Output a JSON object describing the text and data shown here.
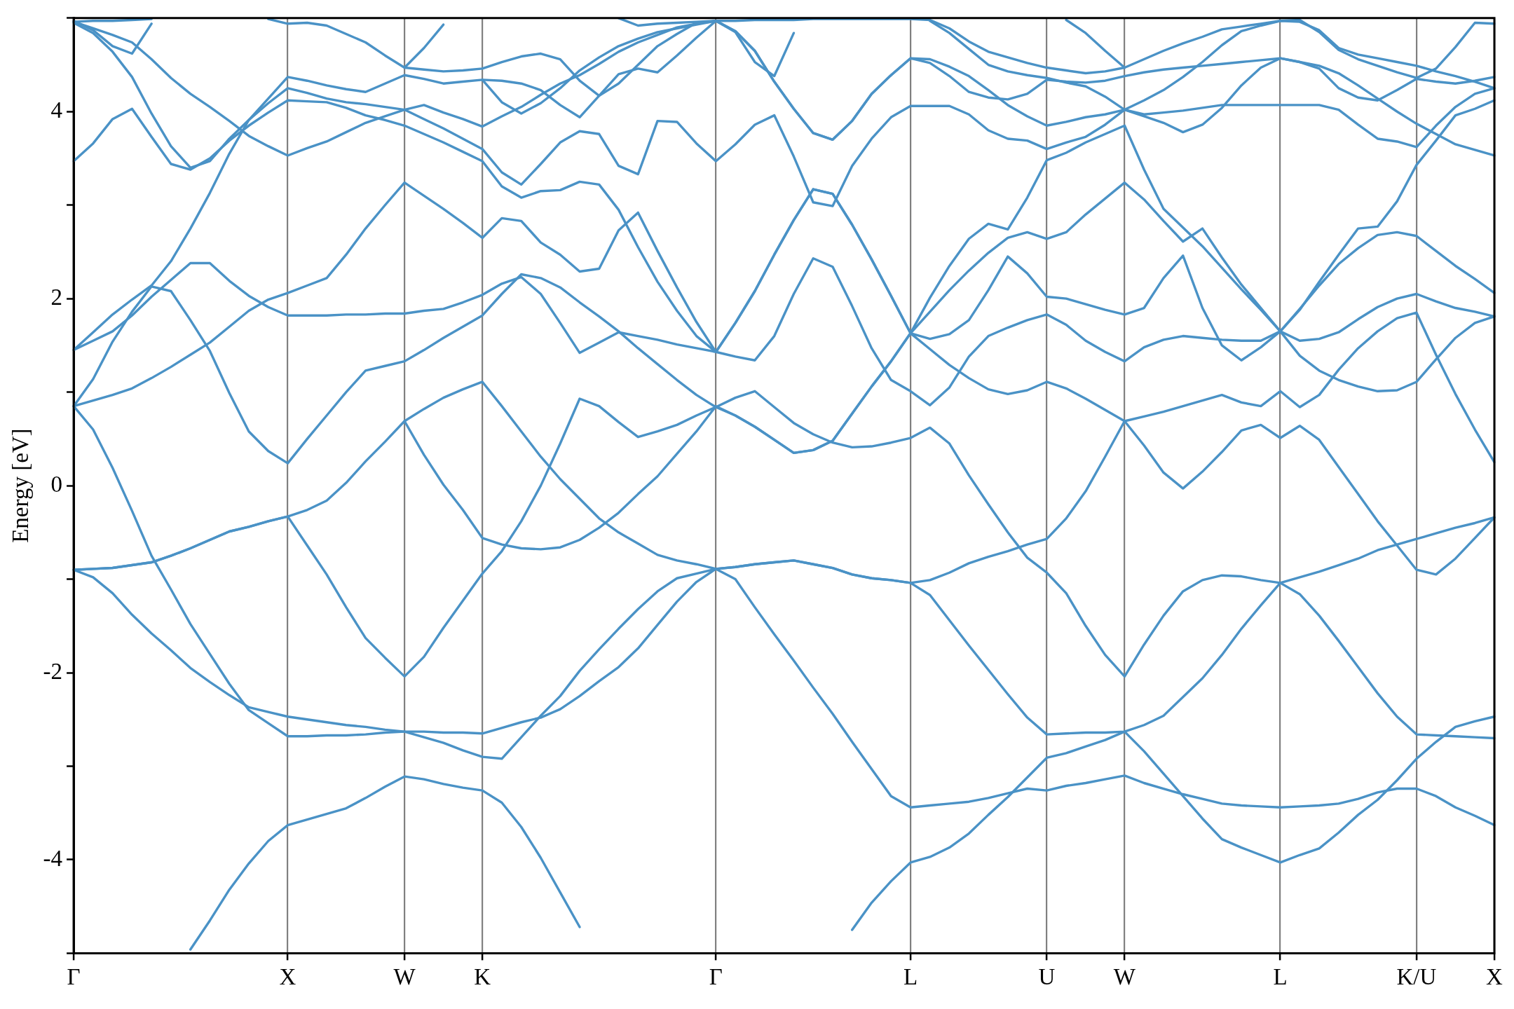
{
  "chart_data": {
    "type": "line",
    "ylabel": "Energy [eV]",
    "color": "#4a92c6",
    "marker": "none",
    "legend": false,
    "grid": "x",
    "categories": [
      "Γ",
      null,
      null,
      null,
      null,
      null,
      null,
      null,
      null,
      null,
      null,
      "X",
      null,
      null,
      null,
      null,
      null,
      "W",
      null,
      null,
      null,
      "K",
      null,
      null,
      null,
      null,
      null,
      null,
      null,
      null,
      null,
      null,
      null,
      "Γ",
      null,
      null,
      null,
      null,
      null,
      null,
      null,
      null,
      null,
      "L",
      null,
      null,
      null,
      null,
      null,
      null,
      "U",
      null,
      null,
      null,
      "W",
      null,
      null,
      null,
      null,
      null,
      null,
      null,
      "L",
      null,
      null,
      null,
      null,
      null,
      null,
      "K/U",
      null,
      null,
      null,
      "X"
    ],
    "ylim": [
      -5,
      5
    ],
    "yticks": [
      {
        "value": -5,
        "label": null
      },
      -4,
      {
        "value": -3,
        "label": null
      },
      -2,
      {
        "value": -1,
        "label": null
      },
      0,
      {
        "value": 1,
        "label": null
      },
      2,
      {
        "value": 3,
        "label": null
      },
      4,
      {
        "value": 5,
        "label": null
      }
    ],
    "series": [
      {
        "values": [
          null,
          null,
          null,
          null,
          null,
          null,
          -4.96,
          -4.65,
          -4.32,
          -4.04,
          -3.8,
          -3.63,
          -3.57,
          -3.51,
          -3.45,
          -3.34,
          -3.22,
          -3.11,
          -3.14,
          -3.19,
          -3.23,
          -3.26,
          -3.39,
          -3.65,
          -3.98,
          -4.35,
          -4.72,
          null,
          null,
          null,
          null,
          null,
          null,
          null,
          null,
          null,
          null,
          null,
          null,
          null,
          null,
          null,
          null,
          null,
          null,
          null,
          null,
          null,
          null,
          null,
          null,
          null,
          null,
          null,
          null,
          null,
          null,
          null,
          null,
          null,
          null,
          null,
          null,
          null,
          null,
          null,
          null,
          null,
          null,
          null,
          null,
          null,
          null,
          null
        ]
      },
      {
        "values": [
          null,
          null,
          null,
          null,
          null,
          null,
          null,
          null,
          null,
          null,
          null,
          null,
          null,
          null,
          null,
          null,
          null,
          null,
          null,
          null,
          null,
          null,
          null,
          null,
          null,
          null,
          null,
          null,
          null,
          null,
          null,
          null,
          null,
          null,
          null,
          null,
          null,
          null,
          null,
          null,
          -4.75,
          -4.46,
          -4.23,
          -4.03,
          -3.97,
          -3.87,
          -3.72,
          -3.52,
          -3.33,
          -3.12,
          -2.91,
          -2.86,
          -2.79,
          -2.72,
          -2.63,
          -2.84,
          -3.08,
          -3.32,
          -3.56,
          -3.78,
          -3.87,
          -3.95,
          -4.03,
          -3.95,
          -3.88,
          -3.71,
          -3.52,
          -3.36,
          -3.15,
          -2.92,
          -2.74,
          -2.58,
          -2.52,
          -2.47
        ]
      },
      {
        "values": [
          -0.9,
          -0.98,
          -1.15,
          -1.38,
          -1.58,
          -1.76,
          -1.95,
          -2.1,
          -2.24,
          -2.37,
          -2.42,
          -2.47,
          -2.5,
          -2.53,
          -2.56,
          -2.58,
          -2.61,
          -2.63,
          -2.69,
          -2.75,
          -2.83,
          -2.9,
          -2.92,
          -2.69,
          -2.46,
          -2.25,
          -1.98,
          -1.75,
          -1.53,
          -1.32,
          -1.13,
          -0.99,
          -0.94,
          -0.89,
          -1,
          -1.3,
          -1.59,
          -1.87,
          -2.16,
          -2.44,
          -2.74,
          -3.03,
          -3.32,
          -3.44,
          -3.42,
          -3.4,
          -3.38,
          -3.34,
          -3.29,
          -3.24,
          -3.26,
          -3.21,
          -3.18,
          -3.14,
          -3.1,
          -3.18,
          -3.24,
          -3.3,
          -3.35,
          -3.4,
          -3.42,
          -3.43,
          -3.44,
          -3.43,
          -3.42,
          -3.4,
          -3.35,
          -3.28,
          -3.24,
          -3.24,
          -3.32,
          -3.44,
          -3.53,
          -3.63
        ]
      },
      {
        "values": [
          0.85,
          0.6,
          0.19,
          -0.27,
          -0.75,
          -1.11,
          -1.48,
          -1.8,
          -2.12,
          -2.4,
          -2.54,
          -2.68,
          -2.68,
          -2.67,
          -2.67,
          -2.66,
          -2.64,
          -2.63,
          -2.63,
          -2.64,
          -2.64,
          -2.65,
          -2.59,
          -2.53,
          -2.48,
          -2.39,
          -2.25,
          -2.09,
          -1.94,
          -1.74,
          -1.49,
          -1.24,
          -1.03,
          -0.89,
          -0.87,
          -0.84,
          -0.82,
          -0.8,
          -0.84,
          -0.88,
          -0.95,
          -0.99,
          -1.01,
          -1.04,
          -1.01,
          -0.93,
          -0.83,
          -0.76,
          -0.7,
          -0.63,
          -0.57,
          -0.35,
          -0.06,
          0.31,
          0.69,
          0.74,
          0.79,
          0.85,
          0.91,
          0.97,
          0.89,
          0.85,
          1.01,
          0.84,
          0.97,
          1.24,
          1.47,
          1.65,
          1.79,
          1.85,
          1.4,
          0.98,
          0.6,
          0.25
        ]
      },
      {
        "values": [
          -0.9,
          -0.89,
          -0.88,
          -0.85,
          -0.82,
          -0.75,
          -0.67,
          -0.58,
          -0.49,
          -0.44,
          -0.38,
          -0.33,
          -0.64,
          -0.95,
          -1.3,
          -1.63,
          -1.84,
          -2.04,
          -1.83,
          -1.52,
          -1.23,
          -0.94,
          -0.7,
          -0.38,
          0,
          0.45,
          0.93,
          0.85,
          0.68,
          0.52,
          0.58,
          0.65,
          0.75,
          0.84,
          0.94,
          1.01,
          0.84,
          0.67,
          0.55,
          0.46,
          0.41,
          0.42,
          0.46,
          0.51,
          0.62,
          0.45,
          0.11,
          -0.2,
          -0.5,
          -0.77,
          -0.93,
          -1.15,
          -1.5,
          -1.81,
          -2.04,
          -1.7,
          -1.39,
          -1.13,
          -1.01,
          -0.96,
          -0.97,
          -1.01,
          -1.04,
          -0.98,
          -0.92,
          -0.85,
          -0.78,
          -0.69,
          -0.63,
          -0.57,
          -0.51,
          -0.45,
          -0.4,
          -0.34
        ]
      },
      {
        "values": [
          -0.9,
          -0.89,
          -0.88,
          -0.85,
          -0.82,
          -0.75,
          -0.67,
          -0.58,
          -0.49,
          -0.44,
          -0.38,
          -0.33,
          -0.26,
          -0.16,
          0.03,
          0.26,
          0.47,
          0.69,
          0.33,
          0.01,
          -0.26,
          -0.56,
          -0.63,
          -0.67,
          -0.68,
          -0.66,
          -0.58,
          -0.45,
          -0.29,
          -0.09,
          0.1,
          0.34,
          0.58,
          0.85,
          0.75,
          0.63,
          0.49,
          0.35,
          0.38,
          0.48,
          0.77,
          1.06,
          1.33,
          1.63,
          1.86,
          2.09,
          2.3,
          2.49,
          2.65,
          2.71,
          2.64,
          2.71,
          2.9,
          3.07,
          3.24,
          3.06,
          2.83,
          2.61,
          2.75,
          2.44,
          2.15,
          1.9,
          1.65,
          1.89,
          2.14,
          2.37,
          2.54,
          2.68,
          2.71,
          2.67,
          2.51,
          2.35,
          2.21,
          2.06
        ]
      },
      {
        "values": [
          0.85,
          1.14,
          1.54,
          1.86,
          2.13,
          2.08,
          1.77,
          1.44,
          0.99,
          0.58,
          0.37,
          0.24,
          0.5,
          0.75,
          1,
          1.23,
          1.28,
          1.33,
          1.45,
          1.58,
          1.7,
          1.82,
          2.05,
          2.26,
          2.22,
          2.12,
          1.96,
          1.81,
          1.65,
          1.47,
          1.3,
          1.13,
          0.97,
          0.84,
          0.75,
          0.63,
          0.49,
          0.35,
          0.38,
          0.48,
          0.77,
          1.06,
          1.33,
          1.63,
          1.57,
          1.62,
          1.77,
          2.09,
          2.45,
          2.27,
          2.02,
          2,
          1.94,
          1.88,
          1.83,
          1.9,
          2.22,
          2.46,
          1.9,
          1.5,
          1.34,
          1.48,
          1.65,
          1.55,
          1.57,
          1.64,
          1.78,
          1.91,
          2,
          2.05,
          1.97,
          1.9,
          1.86,
          1.81
        ]
      },
      {
        "values": [
          1.45,
          1.55,
          1.65,
          1.82,
          2.02,
          2.2,
          2.38,
          2.38,
          2.19,
          2.03,
          1.91,
          1.82,
          1.82,
          1.82,
          1.83,
          1.83,
          1.84,
          1.84,
          1.87,
          1.89,
          1.96,
          2.04,
          2.16,
          2.23,
          2.05,
          1.74,
          1.42,
          1.53,
          1.64,
          1.6,
          1.56,
          1.51,
          1.47,
          1.43,
          1.38,
          1.34,
          1.6,
          2.05,
          2.43,
          2.34,
          1.92,
          1.47,
          1.13,
          1.01,
          0.86,
          1.05,
          1.38,
          1.6,
          1.69,
          1.77,
          1.83,
          1.72,
          1.55,
          1.43,
          1.33,
          1.48,
          1.56,
          1.6,
          1.58,
          1.56,
          1.55,
          1.55,
          1.65,
          1.39,
          1.23,
          1.13,
          1.06,
          1.01,
          1.02,
          1.11,
          1.35,
          1.58,
          1.74,
          1.81
        ]
      },
      {
        "values": [
          0.85,
          0.91,
          0.97,
          1.04,
          1.15,
          1.27,
          1.4,
          1.53,
          1.7,
          1.87,
          1.99,
          2.06,
          2.14,
          2.22,
          2.47,
          2.75,
          3,
          3.24,
          3.1,
          2.96,
          2.81,
          2.65,
          2.86,
          2.83,
          2.6,
          2.47,
          2.29,
          2.32,
          2.73,
          2.92,
          2.51,
          2.12,
          1.75,
          1.43,
          1.74,
          2.08,
          2.47,
          2.84,
          3.17,
          3.12,
          2.79,
          2.42,
          2.03,
          1.63,
          2.01,
          2.35,
          2.64,
          2.8,
          2.74,
          3.08,
          3.48,
          3.56,
          3.67,
          3.76,
          3.85,
          3.38,
          2.96,
          2.76,
          2.56,
          2.33,
          2.1,
          1.88,
          1.65,
          1.88,
          2.18,
          2.47,
          2.75,
          2.77,
          3.04,
          3.43,
          3.69,
          3.96,
          4.03,
          4.12
        ]
      },
      {
        "values": [
          4.96,
          4.89,
          4.82,
          4.74,
          4.56,
          4.36,
          4.19,
          4.05,
          3.9,
          3.74,
          3.63,
          3.53,
          3.61,
          3.68,
          3.78,
          3.88,
          3.95,
          4.02,
          3.92,
          3.82,
          3.71,
          3.6,
          3.35,
          3.22,
          3.44,
          3.67,
          3.79,
          3.76,
          3.42,
          3.33,
          3.9,
          3.89,
          3.66,
          3.47,
          3.65,
          3.86,
          3.96,
          3.52,
          3.03,
          2.99,
          3.42,
          3.71,
          3.94,
          4.06,
          4.06,
          4.06,
          3.97,
          3.8,
          3.71,
          3.69,
          3.6,
          3.67,
          3.73,
          3.86,
          4.02,
          3.95,
          3.88,
          3.78,
          3.86,
          4.04,
          4.28,
          4.47,
          4.57,
          4.53,
          4.49,
          4.41,
          4.28,
          4.14,
          4,
          3.87,
          3.76,
          3.65,
          3.59,
          3.53
        ]
      },
      {
        "values": [
          3.47,
          3.66,
          3.92,
          4.03,
          3.73,
          3.44,
          3.38,
          3.5,
          3.69,
          3.85,
          3.99,
          4.12,
          4.11,
          4.1,
          4.04,
          3.96,
          3.91,
          3.85,
          3.76,
          3.67,
          3.57,
          3.47,
          3.2,
          3.08,
          3.15,
          3.16,
          3.25,
          3.22,
          2.95,
          2.55,
          2.18,
          1.87,
          1.6,
          1.43,
          1.74,
          2.08,
          2.47,
          2.84,
          3.17,
          3.12,
          2.79,
          2.42,
          2.03,
          1.63,
          1.46,
          1.29,
          1.15,
          1.03,
          0.98,
          1.02,
          1.11,
          1.04,
          0.93,
          0.81,
          0.69,
          0.43,
          0.14,
          -0.03,
          0.15,
          0.36,
          0.59,
          0.65,
          0.51,
          0.64,
          0.49,
          0.2,
          -0.09,
          -0.38,
          -0.64,
          -0.9,
          -0.95,
          -0.78,
          -0.56,
          -0.34
        ]
      },
      {
        "values": [
          4.95,
          4.84,
          4.64,
          4.37,
          3.98,
          3.63,
          3.4,
          3.47,
          3.71,
          3.91,
          4.09,
          4.25,
          4.2,
          4.14,
          4.1,
          4.08,
          4.05,
          4.02,
          4.07,
          3.99,
          3.92,
          3.84,
          3.95,
          4.05,
          4.18,
          4.3,
          4.39,
          4.51,
          4.64,
          4.74,
          4.82,
          4.9,
          4.94,
          4.97,
          4.97,
          4.98,
          4.98,
          4.98,
          4.99,
          4.99,
          4.99,
          4.99,
          4.99,
          4.99,
          4.98,
          4.89,
          4.75,
          4.64,
          4.58,
          4.52,
          4.47,
          4.44,
          4.41,
          4.43,
          4.47,
          4.56,
          4.65,
          4.73,
          4.8,
          4.88,
          4.91,
          4.94,
          4.97,
          4.96,
          4.87,
          4.68,
          4.61,
          4.57,
          4.53,
          4.49,
          4.43,
          4.38,
          4.32,
          4.25
        ]
      },
      {
        "values": [
          1.45,
          1.64,
          1.83,
          1.99,
          2.14,
          2.4,
          2.75,
          3.13,
          3.55,
          3.91,
          4.14,
          4.37,
          4.33,
          4.28,
          4.24,
          4.21,
          4.3,
          4.39,
          4.35,
          4.3,
          4.32,
          4.34,
          4.1,
          3.98,
          4.09,
          4.25,
          4.44,
          4.58,
          4.7,
          4.78,
          4.85,
          4.89,
          4.93,
          4.97,
          4.85,
          4.53,
          4.38,
          4.84,
          null,
          null,
          null,
          null,
          null,
          null,
          null,
          null,
          null,
          null,
          null,
          null,
          null,
          null,
          null,
          null,
          null,
          null,
          null,
          null,
          null,
          null,
          null,
          null,
          null,
          null,
          null,
          null,
          null,
          null,
          null,
          null,
          null,
          null,
          null,
          null
        ]
      },
      {
        "values": [
          null,
          null,
          null,
          null,
          null,
          null,
          null,
          null,
          null,
          null,
          4.99,
          4.94,
          4.95,
          4.92,
          4.83,
          4.74,
          4.6,
          4.47,
          4.45,
          4.43,
          4.44,
          4.46,
          4.53,
          4.59,
          4.62,
          4.56,
          4.33,
          4.17,
          4.3,
          4.5,
          4.7,
          4.83,
          4.95,
          4.97,
          4.86,
          4.65,
          4.32,
          4.03,
          3.77,
          3.7,
          3.9,
          4.19,
          4.39,
          4.57,
          4.52,
          4.38,
          4.21,
          4.15,
          4.13,
          4.19,
          4.34,
          4.32,
          4.31,
          4.33,
          4.38,
          4.42,
          4.45,
          4.47,
          4.49,
          4.51,
          4.53,
          4.55,
          4.57,
          4.53,
          4.46,
          4.25,
          4.15,
          4.12,
          4.23,
          4.35,
          4.32,
          4.3,
          4.33,
          4.37
        ]
      },
      {
        "values": [
          null,
          null,
          null,
          null,
          null,
          null,
          null,
          null,
          null,
          null,
          null,
          null,
          null,
          null,
          null,
          null,
          null,
          0.69,
          0.82,
          0.94,
          1.03,
          1.11,
          0.85,
          0.58,
          0.31,
          0.07,
          -0.14,
          -0.35,
          -0.5,
          -0.62,
          -0.74,
          -0.8,
          -0.84,
          -0.89,
          -0.87,
          -0.84,
          -0.82,
          -0.8,
          -0.84,
          -0.88,
          -0.95,
          -0.99,
          -1.01,
          -1.04,
          -1.17,
          -1.44,
          -1.71,
          -1.97,
          -2.23,
          -2.48,
          -2.66,
          -2.65,
          -2.64,
          -2.64,
          -2.63,
          -2.56,
          -2.46,
          -2.26,
          -2.06,
          -1.81,
          -1.53,
          -1.28,
          -1.04,
          -1.16,
          -1.39,
          -1.66,
          -1.94,
          -2.22,
          -2.47,
          -2.66,
          -2.67,
          -2.68,
          -2.69,
          -2.7
        ]
      },
      {
        "values": [
          null,
          null,
          null,
          null,
          null,
          null,
          null,
          null,
          null,
          null,
          null,
          null,
          null,
          null,
          null,
          null,
          null,
          null,
          null,
          null,
          null,
          4.34,
          4.33,
          4.3,
          4.23,
          4.07,
          3.94,
          4.17,
          4.4,
          4.46,
          4.42,
          4.6,
          4.79,
          4.97,
          4.86,
          4.65,
          4.32,
          4.03,
          3.77,
          3.7,
          3.9,
          4.19,
          4.39,
          4.57,
          4.56,
          4.48,
          4.38,
          4.23,
          4.07,
          3.95,
          3.85,
          3.89,
          3.94,
          3.97,
          4.02,
          3.97,
          3.99,
          4.01,
          4.04,
          4.07,
          4.07,
          4.07,
          4.07,
          4.07,
          4.07,
          4.02,
          3.86,
          3.71,
          3.68,
          3.62,
          3.85,
          4.05,
          4.19,
          4.25
        ]
      },
      {
        "values": [
          4.97,
          4.87,
          4.7,
          4.62,
          4.94,
          null,
          null,
          null,
          null,
          null,
          null,
          null,
          null,
          null,
          null,
          null,
          null,
          null,
          null,
          null,
          null,
          null,
          null,
          null,
          null,
          null,
          null,
          null,
          null,
          null,
          null,
          null,
          null,
          null,
          null,
          null,
          null,
          null,
          null,
          null,
          null,
          null,
          null,
          null,
          null,
          null,
          null,
          null,
          null,
          null,
          null,
          null,
          null,
          null,
          null,
          null,
          null,
          null,
          null,
          null,
          null,
          null,
          null,
          null,
          null,
          null,
          null,
          null,
          null,
          null,
          null,
          null,
          null,
          null
        ]
      },
      {
        "values": [
          4.96,
          4.97,
          4.97,
          4.98,
          4.99,
          null,
          null,
          null,
          null,
          null,
          null,
          null,
          null,
          null,
          null,
          null,
          null,
          null,
          null,
          null,
          null,
          null,
          null,
          null,
          null,
          null,
          null,
          null,
          null,
          null,
          null,
          null,
          null,
          null,
          null,
          null,
          null,
          null,
          null,
          null,
          null,
          null,
          null,
          null,
          null,
          null,
          null,
          null,
          null,
          null,
          null,
          null,
          null,
          null,
          null,
          null,
          null,
          null,
          null,
          null,
          null,
          null,
          null,
          null,
          null,
          null,
          null,
          null,
          null,
          null,
          null,
          null,
          null,
          null
        ]
      },
      {
        "values": [
          null,
          null,
          null,
          null,
          null,
          null,
          null,
          null,
          null,
          null,
          null,
          null,
          null,
          null,
          null,
          null,
          null,
          4.47,
          4.68,
          4.93,
          null,
          null,
          null,
          null,
          null,
          null,
          null,
          null,
          null,
          null,
          null,
          null,
          null,
          null,
          null,
          null,
          null,
          null,
          null,
          null,
          null,
          null,
          null,
          null,
          null,
          null,
          null,
          null,
          null,
          null,
          null,
          null,
          null,
          null,
          null,
          null,
          null,
          null,
          null,
          null,
          null,
          null,
          null,
          null,
          null,
          null,
          null,
          null,
          null,
          null,
          null,
          null,
          null,
          null
        ]
      },
      {
        "values": [
          null,
          null,
          null,
          null,
          null,
          null,
          null,
          null,
          null,
          null,
          null,
          null,
          null,
          null,
          null,
          null,
          null,
          null,
          null,
          null,
          null,
          null,
          null,
          null,
          null,
          null,
          null,
          null,
          5,
          4.92,
          4.94,
          4.95,
          4.96,
          4.97,
          null,
          null,
          null,
          null,
          null,
          null,
          null,
          null,
          null,
          null,
          null,
          null,
          null,
          null,
          null,
          null,
          null,
          null,
          null,
          null,
          null,
          null,
          null,
          null,
          null,
          null,
          null,
          null,
          null,
          null,
          null,
          null,
          null,
          null,
          null,
          null,
          null,
          null,
          null,
          null
        ]
      },
      {
        "values": [
          null,
          null,
          null,
          null,
          null,
          null,
          null,
          null,
          null,
          null,
          null,
          null,
          null,
          null,
          null,
          null,
          null,
          null,
          null,
          null,
          null,
          null,
          null,
          null,
          null,
          null,
          null,
          null,
          null,
          null,
          null,
          null,
          null,
          null,
          null,
          null,
          null,
          null,
          null,
          null,
          null,
          null,
          null,
          null,
          4.97,
          4.84,
          4.67,
          4.5,
          4.43,
          4.39,
          4.36,
          4.31,
          4.27,
          4.16,
          4.02,
          4.12,
          4.23,
          4.37,
          4.53,
          4.71,
          4.86,
          4.92,
          4.97,
          4.98,
          4.85,
          4.66,
          4.56,
          4.49,
          4.42,
          4.36,
          4.46,
          4.69,
          4.95,
          4.94
        ]
      },
      {
        "values": [
          null,
          null,
          null,
          null,
          null,
          null,
          null,
          null,
          null,
          null,
          null,
          null,
          null,
          null,
          null,
          null,
          null,
          null,
          null,
          null,
          null,
          null,
          null,
          null,
          null,
          null,
          null,
          null,
          null,
          null,
          null,
          null,
          null,
          null,
          null,
          null,
          null,
          null,
          null,
          null,
          null,
          null,
          null,
          null,
          null,
          null,
          null,
          null,
          null,
          null,
          null,
          4.98,
          4.84,
          4.65,
          4.47,
          null,
          null,
          null,
          null,
          null,
          null,
          null,
          null,
          null,
          null,
          null,
          null,
          null,
          null,
          null,
          null,
          null,
          null,
          null
        ]
      }
    ]
  }
}
